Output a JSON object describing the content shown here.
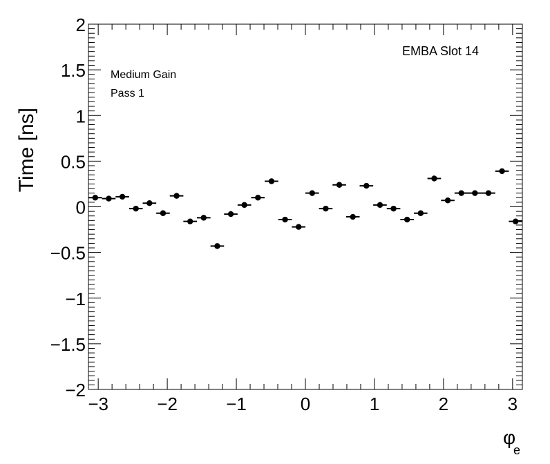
{
  "chart_data": {
    "type": "scatter",
    "title": "",
    "xlabel": "φ",
    "xlabel_sub": "e",
    "ylabel": "Time [ns]",
    "xlim": [
      -3.1416,
      3.1416
    ],
    "ylim": [
      -2,
      2
    ],
    "x_ticks": [
      {
        "v": -3,
        "label": "−3"
      },
      {
        "v": -2,
        "label": "−2"
      },
      {
        "v": -1,
        "label": "−1"
      },
      {
        "v": 0,
        "label": "0"
      },
      {
        "v": 1,
        "label": "1"
      },
      {
        "v": 2,
        "label": "2"
      },
      {
        "v": 3,
        "label": "3"
      }
    ],
    "y_ticks": [
      {
        "v": 2,
        "label": "2"
      },
      {
        "v": 1.5,
        "label": "1.5"
      },
      {
        "v": 1,
        "label": "1"
      },
      {
        "v": 0.5,
        "label": "0.5"
      },
      {
        "v": 0,
        "label": "0"
      },
      {
        "v": -0.5,
        "label": "−0.5"
      },
      {
        "v": -1,
        "label": "−1"
      },
      {
        "v": -1.5,
        "label": "−1.5"
      },
      {
        "v": -2,
        "label": "−2"
      }
    ],
    "annotations": {
      "module": "EMBA Slot 14",
      "gain": "Medium Gain",
      "pass": "Pass 1"
    },
    "x_bin_halfwidth": 0.0982,
    "points": [
      {
        "x": -3.0434,
        "y": 0.1
      },
      {
        "x": -2.8471,
        "y": 0.09
      },
      {
        "x": -2.6507,
        "y": 0.11
      },
      {
        "x": -2.4544,
        "y": -0.02
      },
      {
        "x": -2.258,
        "y": 0.04
      },
      {
        "x": -2.0617,
        "y": -0.07
      },
      {
        "x": -1.8653,
        "y": 0.12
      },
      {
        "x": -1.669,
        "y": -0.16
      },
      {
        "x": -1.4726,
        "y": -0.12
      },
      {
        "x": -1.2763,
        "y": -0.43
      },
      {
        "x": -1.0799,
        "y": -0.08
      },
      {
        "x": -0.8836,
        "y": 0.02
      },
      {
        "x": -0.6872,
        "y": 0.1
      },
      {
        "x": -0.4909,
        "y": 0.28
      },
      {
        "x": -0.2945,
        "y": -0.14
      },
      {
        "x": -0.0982,
        "y": -0.22
      },
      {
        "x": 0.0982,
        "y": 0.15
      },
      {
        "x": 0.2945,
        "y": -0.02
      },
      {
        "x": 0.4909,
        "y": 0.24
      },
      {
        "x": 0.6872,
        "y": -0.11
      },
      {
        "x": 0.8836,
        "y": 0.23
      },
      {
        "x": 1.0799,
        "y": 0.02
      },
      {
        "x": 1.2763,
        "y": -0.02
      },
      {
        "x": 1.4726,
        "y": -0.14
      },
      {
        "x": 1.669,
        "y": -0.07
      },
      {
        "x": 1.8653,
        "y": 0.31
      },
      {
        "x": 2.0617,
        "y": 0.07
      },
      {
        "x": 2.258,
        "y": 0.15
      },
      {
        "x": 2.4544,
        "y": 0.15
      },
      {
        "x": 2.6507,
        "y": 0.15
      },
      {
        "x": 2.8471,
        "y": 0.39
      },
      {
        "x": 3.0434,
        "y": -0.16
      }
    ],
    "grid": false,
    "legend": "none",
    "colors": {
      "marker": "#000000",
      "frame": "#000000",
      "background": "#ffffff"
    }
  }
}
